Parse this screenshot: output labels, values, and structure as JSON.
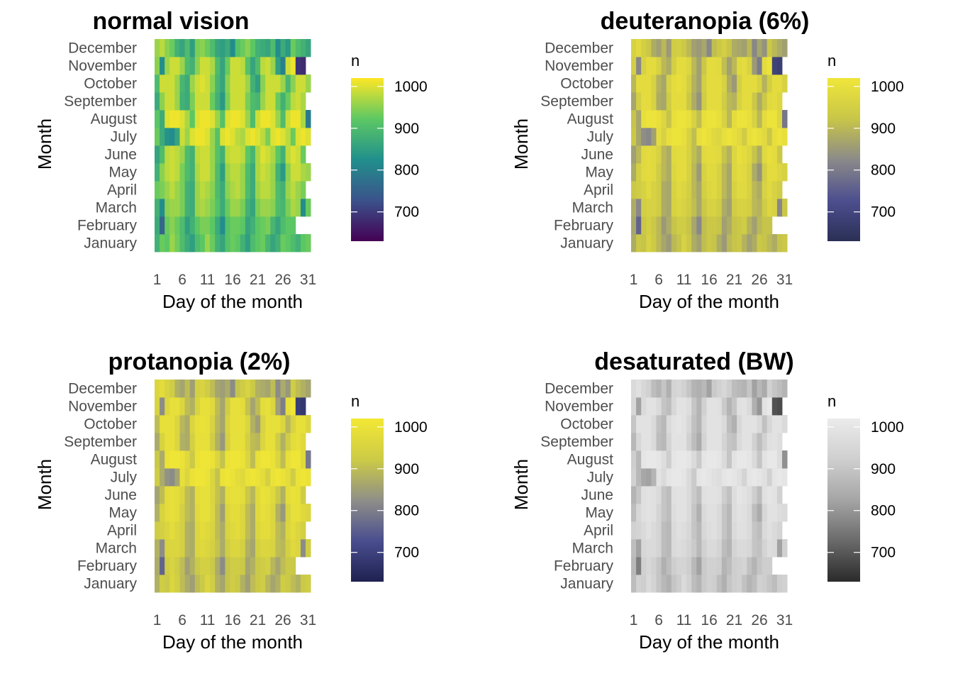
{
  "chart_data": [
    {
      "type": "heatmap",
      "title": "normal vision",
      "xlabel": "Day of the month",
      "ylabel": "Month",
      "legend_title": "n",
      "colormap": "viridis",
      "colors": [
        "#440154",
        "#3b528b",
        "#21908c",
        "#5dc863",
        "#fde725"
      ],
      "legend_ticks": [
        700,
        800,
        900,
        1000
      ],
      "value_range": [
        630,
        1020
      ],
      "legend_placement": "right",
      "grid": false
    },
    {
      "type": "heatmap",
      "title": "deuteranopia (6%)",
      "xlabel": "Day of the month",
      "ylabel": "Month",
      "legend_title": "n",
      "colormap": "viridis-deuteranopia",
      "colors": [
        "#2a2f55",
        "#4d4f8f",
        "#8b8a89",
        "#c8c648",
        "#f0e63a"
      ],
      "legend_ticks": [
        700,
        800,
        900,
        1000
      ],
      "value_range": [
        630,
        1020
      ],
      "legend_placement": "right",
      "grid": false
    },
    {
      "type": "heatmap",
      "title": "protanopia (2%)",
      "xlabel": "Day of the month",
      "ylabel": "Month",
      "legend_title": "n",
      "colormap": "viridis-protanopia",
      "colors": [
        "#1e2150",
        "#4a4e8f",
        "#8f8f88",
        "#cccb46",
        "#f3e834"
      ],
      "legend_ticks": [
        700,
        800,
        900,
        1000
      ],
      "value_range": [
        630,
        1020
      ],
      "legend_placement": "right",
      "grid": false
    },
    {
      "type": "heatmap",
      "title": "desaturated (BW)",
      "xlabel": "Day of the month",
      "ylabel": "Month",
      "legend_title": "n",
      "colormap": "grayscale",
      "colors": [
        "#2a2a2a",
        "#6a6a6a",
        "#a5a5a5",
        "#cfcfcf",
        "#ebebeb"
      ],
      "legend_ticks": [
        700,
        800,
        900,
        1000
      ],
      "value_range": [
        630,
        1020
      ],
      "legend_placement": "right",
      "grid": false
    }
  ],
  "months": [
    "January",
    "February",
    "March",
    "April",
    "May",
    "June",
    "July",
    "August",
    "September",
    "October",
    "November",
    "December"
  ],
  "day_ticks": [
    "1",
    "6",
    "11",
    "16",
    "21",
    "26",
    "31"
  ],
  "month_days": [
    31,
    28,
    31,
    30,
    31,
    30,
    31,
    31,
    30,
    31,
    30,
    31
  ],
  "births": [
    [
      880,
      930,
      920,
      960,
      935,
      900,
      870,
      850,
      900,
      920,
      960,
      930,
      880,
      860,
      910,
      930,
      920,
      880,
      850,
      900,
      920,
      930,
      890,
      860,
      880,
      930,
      920,
      900,
      880,
      920,
      930
    ],
    [
      870,
      760,
      930,
      950,
      930,
      900,
      850,
      880,
      920,
      940,
      940,
      920,
      870,
      820,
      910,
      930,
      930,
      920,
      860,
      880,
      920,
      930,
      940,
      890,
      860,
      900,
      920,
      920
    ],
    [
      880,
      820,
      950,
      960,
      960,
      940,
      880,
      870,
      960,
      970,
      960,
      940,
      910,
      870,
      930,
      960,
      960,
      940,
      880,
      860,
      940,
      960,
      960,
      950,
      900,
      890,
      940,
      970,
      960,
      820,
      930
    ],
    [
      930,
      940,
      960,
      980,
      960,
      940,
      880,
      870,
      960,
      980,
      970,
      950,
      900,
      870,
      950,
      970,
      980,
      960,
      900,
      870,
      960,
      980,
      980,
      960,
      900,
      880,
      960,
      980,
      960,
      940
    ],
    [
      880,
      950,
      980,
      990,
      980,
      940,
      900,
      880,
      970,
      990,
      990,
      960,
      900,
      850,
      960,
      980,
      980,
      960,
      900,
      870,
      970,
      990,
      980,
      960,
      880,
      840,
      950,
      990,
      990,
      970,
      960
    ],
    [
      860,
      900,
      980,
      990,
      980,
      960,
      900,
      880,
      980,
      990,
      990,
      960,
      910,
      880,
      980,
      990,
      990,
      980,
      920,
      890,
      970,
      1000,
      990,
      970,
      920,
      880,
      980,
      1000,
      990,
      930
    ],
    [
      930,
      870,
      830,
      820,
      860,
      990,
      960,
      1000,
      1010,
      1010,
      1000,
      960,
      910,
      1000,
      1010,
      1000,
      980,
      970,
      1000,
      1010,
      1000,
      980,
      940,
      1000,
      1010,
      1000,
      980,
      930,
      1000,
      1010,
      1000
    ],
    [
      920,
      870,
      1000,
      1010,
      1010,
      1000,
      970,
      920,
      1000,
      1010,
      1010,
      1000,
      960,
      910,
      1000,
      1010,
      1010,
      1000,
      960,
      900,
      990,
      1010,
      1010,
      1000,
      960,
      900,
      990,
      1010,
      1010,
      970,
      790
    ],
    [
      870,
      950,
      990,
      990,
      960,
      880,
      870,
      940,
      990,
      990,
      990,
      930,
      880,
      840,
      940,
      990,
      990,
      990,
      940,
      900,
      890,
      960,
      990,
      990,
      930,
      880,
      930,
      980,
      990,
      970
    ],
    [
      900,
      990,
      990,
      990,
      960,
      890,
      870,
      960,
      990,
      1000,
      990,
      950,
      890,
      860,
      950,
      990,
      990,
      990,
      960,
      880,
      850,
      950,
      990,
      990,
      990,
      960,
      890,
      950,
      990,
      990,
      960
    ],
    [
      950,
      820,
      960,
      990,
      990,
      960,
      900,
      880,
      950,
      990,
      990,
      970,
      900,
      860,
      930,
      990,
      990,
      980,
      910,
      860,
      900,
      980,
      990,
      960,
      850,
      800,
      990,
      1010,
      690,
      680
    ],
    [
      960,
      980,
      950,
      930,
      880,
      860,
      900,
      850,
      940,
      950,
      930,
      900,
      860,
      850,
      870,
      820,
      910,
      930,
      950,
      920,
      880,
      870,
      860,
      900,
      820,
      870,
      840,
      930,
      900,
      880,
      860
    ]
  ]
}
